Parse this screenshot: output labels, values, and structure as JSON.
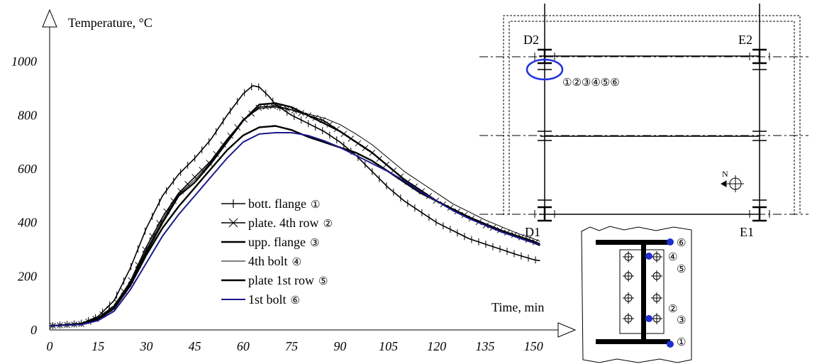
{
  "chart_data": {
    "type": "line",
    "ylabel": "Temperature, °C",
    "xlabel": "Time, min",
    "xlim": [
      0,
      155
    ],
    "ylim": [
      0,
      1150
    ],
    "xticks": [
      "0",
      "15",
      "30",
      "45",
      "60",
      "75",
      "90",
      "105",
      "120",
      "135",
      "150"
    ],
    "yticks": [
      "0",
      "200",
      "400",
      "600",
      "800",
      "1000"
    ],
    "legend_position": "center",
    "series": [
      {
        "name": "bott. flange",
        "marker": "1",
        "color": "#000000",
        "marker_style": "vbar",
        "x": [
          0,
          10,
          15,
          20,
          25,
          30,
          35,
          40,
          45,
          50,
          55,
          60,
          63,
          65,
          68,
          70,
          75,
          80,
          85,
          90,
          95,
          100,
          105,
          110,
          115,
          120,
          125,
          130,
          135,
          140,
          145,
          150,
          152
        ],
        "y": [
          15,
          25,
          50,
          110,
          230,
          380,
          500,
          580,
          640,
          710,
          800,
          880,
          910,
          905,
          870,
          840,
          800,
          770,
          740,
          700,
          650,
          590,
          530,
          480,
          440,
          400,
          370,
          340,
          320,
          300,
          280,
          262,
          258
        ]
      },
      {
        "name": "plate. 4th row",
        "marker": "2",
        "color": "#000000",
        "marker_style": "x",
        "x": [
          0,
          10,
          15,
          20,
          25,
          30,
          35,
          40,
          45,
          50,
          55,
          60,
          65,
          70,
          75,
          80,
          85,
          90,
          95,
          100,
          105,
          110,
          115,
          120,
          125,
          130,
          135,
          140,
          145,
          150,
          152
        ],
        "y": [
          15,
          22,
          45,
          90,
          180,
          310,
          420,
          510,
          570,
          630,
          710,
          780,
          830,
          835,
          820,
          800,
          780,
          740,
          700,
          660,
          610,
          560,
          520,
          480,
          450,
          420,
          390,
          370,
          350,
          330,
          320
        ]
      },
      {
        "name": "upp. flange",
        "marker": "3",
        "color": "#000000",
        "marker_style": "none",
        "x": [
          0,
          10,
          15,
          20,
          25,
          30,
          35,
          40,
          45,
          50,
          55,
          60,
          65,
          70,
          75,
          80,
          85,
          90,
          95,
          100,
          105,
          110,
          115,
          120,
          125,
          130,
          135,
          140,
          145,
          150,
          152
        ],
        "y": [
          15,
          22,
          40,
          80,
          170,
          290,
          400,
          500,
          550,
          620,
          700,
          780,
          840,
          845,
          830,
          800,
          770,
          740,
          700,
          660,
          610,
          560,
          520,
          480,
          450,
          420,
          395,
          370,
          350,
          330,
          320
        ]
      },
      {
        "name": "4th bolt",
        "marker": "4",
        "color": "#000000",
        "marker_style": "none",
        "x": [
          0,
          10,
          15,
          20,
          25,
          30,
          35,
          40,
          45,
          50,
          55,
          60,
          65,
          70,
          75,
          80,
          85,
          90,
          95,
          100,
          105,
          110,
          115,
          120,
          125,
          130,
          135,
          140,
          145,
          150,
          152
        ],
        "y": [
          15,
          22,
          42,
          85,
          175,
          300,
          410,
          505,
          560,
          625,
          705,
          785,
          825,
          830,
          820,
          805,
          790,
          765,
          730,
          690,
          640,
          590,
          550,
          510,
          470,
          440,
          410,
          385,
          360,
          340,
          330
        ]
      },
      {
        "name": "plate 1st row",
        "marker": "5",
        "color": "#000000",
        "marker_style": "none",
        "x": [
          0,
          10,
          15,
          20,
          25,
          30,
          35,
          40,
          45,
          50,
          55,
          60,
          65,
          70,
          75,
          80,
          85,
          90,
          95,
          100,
          105,
          110,
          115,
          120,
          125,
          130,
          135,
          140,
          145,
          150,
          152
        ],
        "y": [
          15,
          22,
          40,
          80,
          165,
          280,
          380,
          460,
          530,
          600,
          670,
          725,
          755,
          760,
          745,
          720,
          700,
          680,
          660,
          630,
          590,
          550,
          510,
          480,
          450,
          420,
          395,
          370,
          345,
          325,
          315
        ]
      },
      {
        "name": "1st bolt",
        "marker": "6",
        "color": "#1a1a8c",
        "marker_style": "none",
        "x": [
          0,
          10,
          15,
          20,
          25,
          30,
          35,
          40,
          45,
          50,
          55,
          60,
          65,
          70,
          75,
          80,
          85,
          90,
          95,
          100,
          105,
          110,
          115,
          120,
          125,
          130,
          135,
          140,
          145,
          150,
          152
        ],
        "y": [
          15,
          20,
          35,
          70,
          150,
          250,
          350,
          430,
          500,
          570,
          640,
          700,
          730,
          735,
          735,
          725,
          705,
          680,
          650,
          620,
          590,
          555,
          515,
          480,
          445,
          415,
          390,
          365,
          345,
          325,
          318
        ]
      }
    ]
  },
  "plan": {
    "labels": {
      "d2": "D2",
      "e2": "E2",
      "d1": "D1",
      "e1": "E1"
    },
    "thermocouples": "①②③④⑤⑥",
    "north": "N"
  },
  "detail": {
    "markers": [
      "⑥",
      "④",
      "⑤",
      "②",
      "③",
      "①"
    ]
  }
}
